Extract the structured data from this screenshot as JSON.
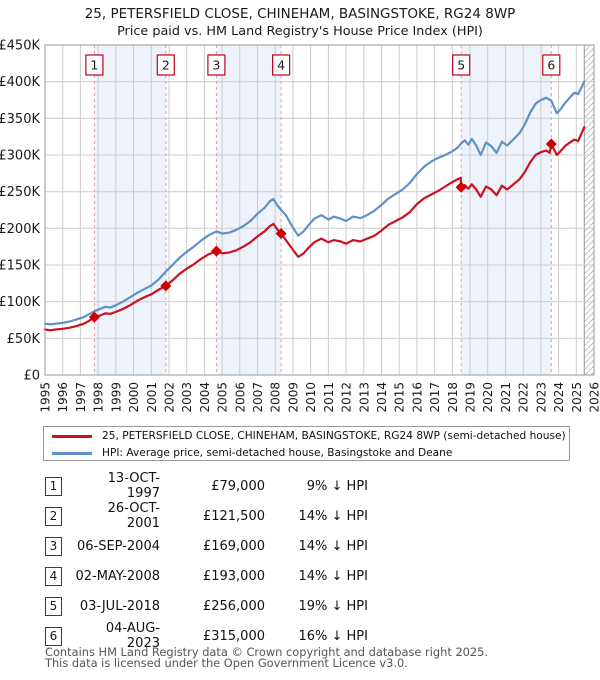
{
  "title": {
    "line1": "25, PETERSFIELD CLOSE, CHINEHAM, BASINGSTOKE, RG24 8WP",
    "line2": "Price paid vs. HM Land Registry's House Price Index (HPI)"
  },
  "legend": {
    "items": [
      {
        "label": "25, PETERSFIELD CLOSE, CHINEHAM, BASINGSTOKE, RG24 8WP (semi-detached house)",
        "color": "#cc1122"
      },
      {
        "label": "HPI: Average price, semi-detached house, Basingstoke and Deane",
        "color": "#6090c8"
      }
    ]
  },
  "transactions": [
    {
      "num": "1",
      "date": "13-OCT-1997",
      "price": "£79,000",
      "pct": "9% ↓ HPI"
    },
    {
      "num": "2",
      "date": "26-OCT-2001",
      "price": "£121,500",
      "pct": "14% ↓ HPI"
    },
    {
      "num": "3",
      "date": "06-SEP-2004",
      "price": "£169,000",
      "pct": "14% ↓ HPI"
    },
    {
      "num": "4",
      "date": "02-MAY-2008",
      "price": "£193,000",
      "pct": "14% ↓ HPI"
    },
    {
      "num": "5",
      "date": "03-JUL-2018",
      "price": "£256,000",
      "pct": "19% ↓ HPI"
    },
    {
      "num": "6",
      "date": "04-AUG-2023",
      "price": "£315,000",
      "pct": "16% ↓ HPI"
    }
  ],
  "footer": {
    "line1": "Contains HM Land Registry data © Crown copyright and database right 2025.",
    "line2": "This data is licensed under the Open Government Licence v3.0."
  },
  "chart_data": {
    "type": "line",
    "title": "25, PETERSFIELD CLOSE, CHINEHAM, BASINGSTOKE, RG24 8WP — Price paid vs HPI",
    "units": "GBP thousands",
    "x_range": [
      1995,
      2026
    ],
    "y_range_k": [
      0,
      450
    ],
    "y_tick_step_k": 50,
    "y_tick_labels": [
      "£0",
      "£50K",
      "£100K",
      "£150K",
      "£200K",
      "£250K",
      "£300K",
      "£350K",
      "£400K",
      "£450K"
    ],
    "x_tick_labels": [
      "1995",
      "1996",
      "1997",
      "1998",
      "1999",
      "2000",
      "2001",
      "2002",
      "2003",
      "2004",
      "2005",
      "2006",
      "2007",
      "2008",
      "2009",
      "2010",
      "2011",
      "2012",
      "2013",
      "2014",
      "2015",
      "2016",
      "2017",
      "2018",
      "2019",
      "2020",
      "2021",
      "2022",
      "2023",
      "2024",
      "2025",
      "2026"
    ],
    "grid": true,
    "legend_position": "below",
    "ownership_bands": [
      [
        1997.79,
        2001.82
      ],
      [
        2004.68,
        2008.33
      ],
      [
        2018.5,
        2023.59
      ]
    ],
    "future_hatch_start": 2025.45,
    "sales": [
      {
        "n": "1",
        "year": 1997.79,
        "price_k": 79,
        "date": "13-OCT-1997",
        "pct_below_hpi": 9
      },
      {
        "n": "2",
        "year": 2001.82,
        "price_k": 121.5,
        "date": "26-OCT-2001",
        "pct_below_hpi": 14
      },
      {
        "n": "3",
        "year": 2004.68,
        "price_k": 169,
        "date": "06-SEP-2004",
        "pct_below_hpi": 14
      },
      {
        "n": "4",
        "year": 2008.33,
        "price_k": 193,
        "date": "02-MAY-2008",
        "pct_below_hpi": 14
      },
      {
        "n": "5",
        "year": 2018.5,
        "price_k": 256,
        "date": "03-JUL-2018",
        "pct_below_hpi": 19
      },
      {
        "n": "6",
        "year": 2023.59,
        "price_k": 315,
        "date": "04-AUG-2023",
        "pct_below_hpi": 16
      }
    ],
    "series": [
      {
        "name": "HPI: Average price, semi-detached house, Basingstoke and Deane",
        "color": "#6090c8",
        "points": [
          [
            1995.0,
            70
          ],
          [
            1995.3,
            69
          ],
          [
            1995.6,
            70
          ],
          [
            1996.0,
            71
          ],
          [
            1996.4,
            73
          ],
          [
            1996.8,
            76
          ],
          [
            1997.2,
            79
          ],
          [
            1997.5,
            83
          ],
          [
            1997.79,
            87
          ],
          [
            1998.1,
            90
          ],
          [
            1998.4,
            93
          ],
          [
            1998.7,
            92
          ],
          [
            1999.0,
            95
          ],
          [
            1999.4,
            100
          ],
          [
            1999.8,
            106
          ],
          [
            2000.2,
            112
          ],
          [
            2000.6,
            117
          ],
          [
            2001.0,
            122
          ],
          [
            2001.4,
            130
          ],
          [
            2001.82,
            141
          ],
          [
            2002.2,
            150
          ],
          [
            2002.6,
            160
          ],
          [
            2003.0,
            168
          ],
          [
            2003.4,
            175
          ],
          [
            2003.8,
            183
          ],
          [
            2004.2,
            190
          ],
          [
            2004.68,
            196
          ],
          [
            2005.0,
            193
          ],
          [
            2005.4,
            194
          ],
          [
            2005.8,
            198
          ],
          [
            2006.2,
            203
          ],
          [
            2006.6,
            210
          ],
          [
            2007.0,
            220
          ],
          [
            2007.4,
            228
          ],
          [
            2007.7,
            237
          ],
          [
            2007.9,
            240
          ],
          [
            2008.1,
            232
          ],
          [
            2008.33,
            225
          ],
          [
            2008.6,
            218
          ],
          [
            2008.9,
            205
          ],
          [
            2009.3,
            190
          ],
          [
            2009.6,
            196
          ],
          [
            2009.9,
            205
          ],
          [
            2010.2,
            213
          ],
          [
            2010.6,
            218
          ],
          [
            2011.0,
            212
          ],
          [
            2011.3,
            216
          ],
          [
            2011.7,
            213
          ],
          [
            2012.0,
            210
          ],
          [
            2012.4,
            216
          ],
          [
            2012.8,
            214
          ],
          [
            2013.2,
            218
          ],
          [
            2013.6,
            224
          ],
          [
            2014.0,
            232
          ],
          [
            2014.4,
            241
          ],
          [
            2014.8,
            247
          ],
          [
            2015.2,
            253
          ],
          [
            2015.6,
            262
          ],
          [
            2016.0,
            274
          ],
          [
            2016.4,
            284
          ],
          [
            2016.8,
            291
          ],
          [
            2017.2,
            296
          ],
          [
            2017.6,
            300
          ],
          [
            2018.0,
            305
          ],
          [
            2018.3,
            310
          ],
          [
            2018.5,
            316
          ],
          [
            2018.7,
            320
          ],
          [
            2018.9,
            314
          ],
          [
            2019.1,
            322
          ],
          [
            2019.35,
            313
          ],
          [
            2019.6,
            300
          ],
          [
            2019.9,
            317
          ],
          [
            2020.2,
            312
          ],
          [
            2020.5,
            303
          ],
          [
            2020.8,
            318
          ],
          [
            2021.1,
            313
          ],
          [
            2021.4,
            320
          ],
          [
            2021.8,
            330
          ],
          [
            2022.1,
            342
          ],
          [
            2022.4,
            358
          ],
          [
            2022.7,
            370
          ],
          [
            2023.0,
            375
          ],
          [
            2023.3,
            378
          ],
          [
            2023.59,
            374
          ],
          [
            2023.9,
            357
          ],
          [
            2024.1,
            362
          ],
          [
            2024.4,
            372
          ],
          [
            2024.7,
            380
          ],
          [
            2024.9,
            385
          ],
          [
            2025.1,
            383
          ],
          [
            2025.25,
            390
          ],
          [
            2025.45,
            400
          ]
        ]
      },
      {
        "name": "25, PETERSFIELD CLOSE, CHINEHAM, BASINGSTOKE, RG24 8WP (semi-detached house)",
        "color": "#cc1122",
        "points": [
          [
            1995.0,
            62
          ],
          [
            1995.3,
            61
          ],
          [
            1995.6,
            62
          ],
          [
            1996.0,
            63
          ],
          [
            1996.4,
            64.5
          ],
          [
            1996.8,
            67
          ],
          [
            1997.2,
            70
          ],
          [
            1997.5,
            74
          ],
          [
            1997.79,
            79
          ],
          [
            1998.1,
            81
          ],
          [
            1998.4,
            84
          ],
          [
            1998.7,
            83.5
          ],
          [
            1999.0,
            86
          ],
          [
            1999.4,
            90
          ],
          [
            1999.8,
            95
          ],
          [
            2000.2,
            101
          ],
          [
            2000.6,
            106
          ],
          [
            2001.0,
            110
          ],
          [
            2001.4,
            116
          ],
          [
            2001.82,
            121.5
          ],
          [
            2002.2,
            129
          ],
          [
            2002.6,
            138
          ],
          [
            2003.0,
            145
          ],
          [
            2003.4,
            151
          ],
          [
            2003.8,
            158
          ],
          [
            2004.2,
            164
          ],
          [
            2004.68,
            169
          ],
          [
            2005.0,
            166
          ],
          [
            2005.4,
            167
          ],
          [
            2005.8,
            170
          ],
          [
            2006.2,
            175
          ],
          [
            2006.6,
            181
          ],
          [
            2007.0,
            189
          ],
          [
            2007.4,
            196
          ],
          [
            2007.7,
            203
          ],
          [
            2007.9,
            206
          ],
          [
            2008.1,
            199
          ],
          [
            2008.33,
            193
          ],
          [
            2008.6,
            184
          ],
          [
            2008.9,
            174
          ],
          [
            2009.3,
            161
          ],
          [
            2009.6,
            166
          ],
          [
            2009.9,
            174
          ],
          [
            2010.2,
            181
          ],
          [
            2010.6,
            186
          ],
          [
            2011.0,
            181
          ],
          [
            2011.3,
            184
          ],
          [
            2011.7,
            182
          ],
          [
            2012.0,
            179
          ],
          [
            2012.4,
            184
          ],
          [
            2012.8,
            182
          ],
          [
            2013.2,
            186
          ],
          [
            2013.6,
            190
          ],
          [
            2014.0,
            197
          ],
          [
            2014.4,
            205
          ],
          [
            2014.8,
            210
          ],
          [
            2015.2,
            215
          ],
          [
            2015.6,
            222
          ],
          [
            2016.0,
            233
          ],
          [
            2016.4,
            241
          ],
          [
            2016.8,
            246
          ],
          [
            2017.2,
            251
          ],
          [
            2017.6,
            257
          ],
          [
            2018.0,
            263
          ],
          [
            2018.3,
            267
          ],
          [
            2018.48,
            269
          ],
          [
            2018.5,
            256
          ],
          [
            2018.7,
            259
          ],
          [
            2018.9,
            254
          ],
          [
            2019.1,
            260
          ],
          [
            2019.35,
            253
          ],
          [
            2019.6,
            243
          ],
          [
            2019.9,
            257
          ],
          [
            2020.2,
            253
          ],
          [
            2020.5,
            245
          ],
          [
            2020.8,
            258
          ],
          [
            2021.1,
            253
          ],
          [
            2021.4,
            259
          ],
          [
            2021.8,
            267
          ],
          [
            2022.1,
            277
          ],
          [
            2022.4,
            290
          ],
          [
            2022.7,
            300
          ],
          [
            2023.0,
            304
          ],
          [
            2023.3,
            306
          ],
          [
            2023.5,
            303
          ],
          [
            2023.59,
            315
          ],
          [
            2023.9,
            300
          ],
          [
            2024.1,
            305
          ],
          [
            2024.4,
            313
          ],
          [
            2024.7,
            318
          ],
          [
            2024.9,
            321
          ],
          [
            2025.1,
            319
          ],
          [
            2025.25,
            327
          ],
          [
            2025.45,
            338
          ]
        ]
      }
    ],
    "colors": {
      "price_paid": "#cc1122",
      "hpi": "#6090c8",
      "sale_marker": "#cc0000",
      "sale_box_border": "#c00016",
      "dashed_guide": "#f49a9a",
      "ownership_band": "#eef3fb",
      "grid": "#cccccc",
      "plot_border": "#9a9a9a",
      "hatch": "#bbbbbb",
      "axis_text": "#1a1a1a"
    }
  }
}
